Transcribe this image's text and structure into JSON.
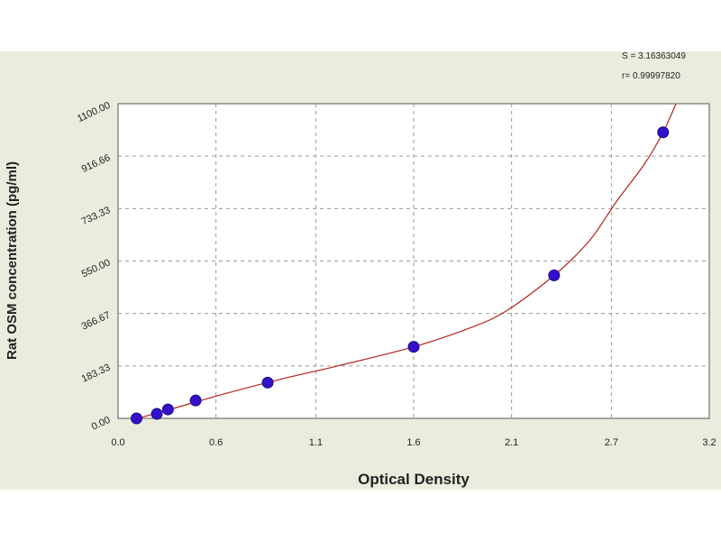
{
  "chart_data": {
    "type": "scatter",
    "xlabel": "Optical Density",
    "ylabel": "Rat OSM concentration (pg/ml)",
    "xlim": [
      0.0,
      3.2
    ],
    "ylim": [
      0,
      1100
    ],
    "x_ticks": [
      "0.0",
      "0.6",
      "1.1",
      "1.6",
      "2.1",
      "2.7",
      "3.2"
    ],
    "x_tick_values": [
      0.0,
      0.53,
      1.07,
      1.6,
      2.13,
      2.67,
      3.2
    ],
    "y_ticks": [
      "0.00",
      "183.33",
      "366.67",
      "550.00",
      "733.33",
      "916.66",
      "1100.00"
    ],
    "y_tick_values": [
      0,
      183.33,
      366.67,
      550,
      733.33,
      916.66,
      1100
    ],
    "stats": [
      "S = 3.16363049",
      "r= 0.99997820"
    ],
    "grid": true,
    "series": [
      {
        "points": [
          {
            "x": 0.1,
            "y": 0
          },
          {
            "x": 0.21,
            "y": 15.6
          },
          {
            "x": 0.27,
            "y": 31.25
          },
          {
            "x": 0.42,
            "y": 62.5
          },
          {
            "x": 0.81,
            "y": 125
          },
          {
            "x": 1.6,
            "y": 250
          },
          {
            "x": 2.36,
            "y": 500
          },
          {
            "x": 2.95,
            "y": 1000
          }
        ],
        "color": "#3311cc"
      }
    ],
    "fit_curve": {
      "color": "#b22222",
      "points": [
        {
          "x": 0.08,
          "y": -5
        },
        {
          "x": 0.3,
          "y": 35
        },
        {
          "x": 0.6,
          "y": 90
        },
        {
          "x": 0.9,
          "y": 140
        },
        {
          "x": 1.2,
          "y": 185
        },
        {
          "x": 1.6,
          "y": 250
        },
        {
          "x": 1.9,
          "y": 315
        },
        {
          "x": 2.1,
          "y": 375
        },
        {
          "x": 2.36,
          "y": 500
        },
        {
          "x": 2.55,
          "y": 620
        },
        {
          "x": 2.7,
          "y": 760
        },
        {
          "x": 2.85,
          "y": 890
        },
        {
          "x": 2.95,
          "y": 1000
        },
        {
          "x": 3.02,
          "y": 1100
        }
      ]
    }
  }
}
